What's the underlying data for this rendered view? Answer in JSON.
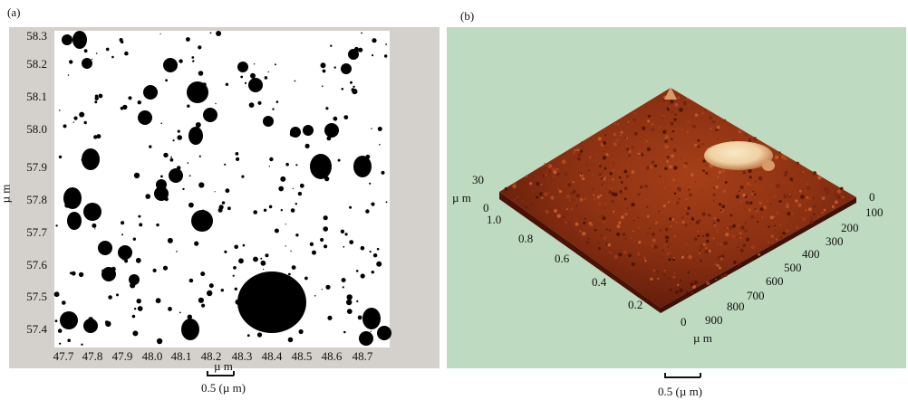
{
  "figure": {
    "panel_a": {
      "label": "(a)",
      "y_axis_label": "µ m",
      "y_ticks": [
        "58.3",
        "58.2",
        "58.1",
        "58.0",
        "57.9",
        "57.8",
        "57.7",
        "57.6",
        "57.5",
        "57.4"
      ],
      "x_ticks": [
        "47.7",
        "47.8",
        "47.9",
        "48.0",
        "48.1",
        "48.2",
        "48.3",
        "48.4",
        "48.5",
        "48.6",
        "48.7"
      ],
      "x_unit": "µ m",
      "scale_bar_label": "0.5 (µ m)"
    },
    "panel_b": {
      "label": "(b)",
      "z_ticks": [
        "30",
        "0"
      ],
      "z_unit": "µ m",
      "left_axis_ticks": [
        "1.0",
        "0.8",
        "0.6",
        "0.4",
        "0.2",
        "0"
      ],
      "right_axis_ticks": [
        "0",
        "100",
        "200",
        "300",
        "400",
        "500",
        "600",
        "700",
        "800",
        "900"
      ],
      "bottom_unit": "µ m",
      "scale_bar_label": "0.5 (µ m)"
    },
    "colors": {
      "panel_a_frame": "#d4d0cc",
      "panel_a_image": "#ffffff",
      "particle": "#000000",
      "panel_b_background": "#bedac1",
      "surface_dark": "#5e1a0a",
      "surface_mid": "#9a3a16",
      "surface_highlight": "#f0d2a4"
    }
  }
}
